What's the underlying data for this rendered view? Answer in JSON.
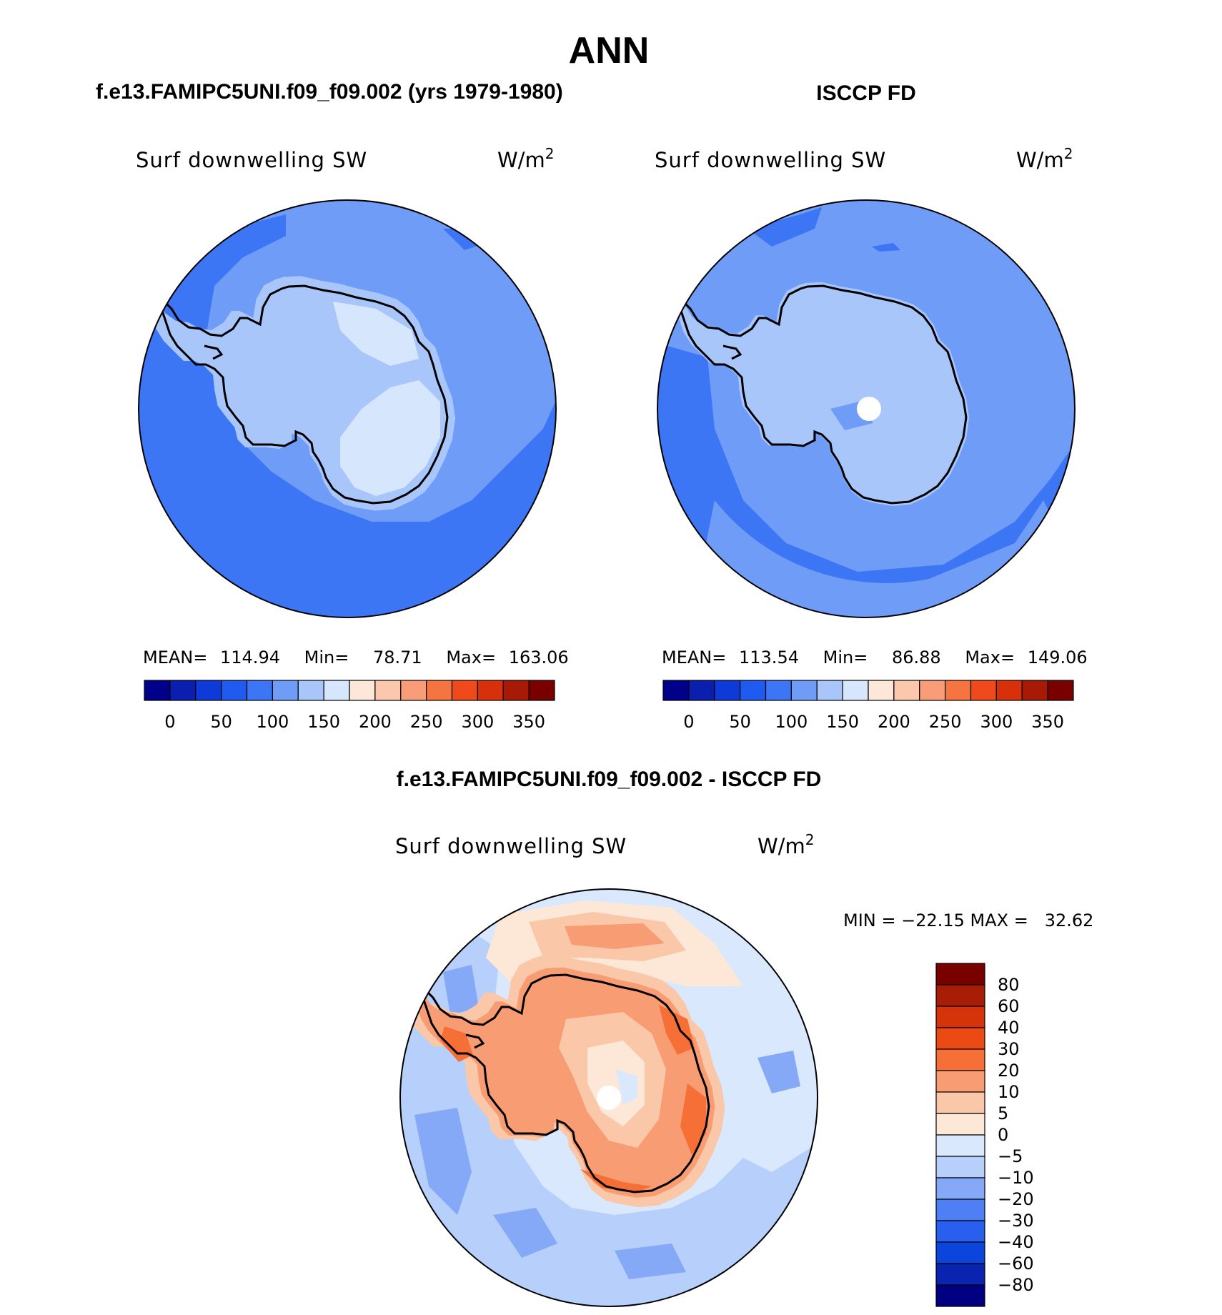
{
  "title": "ANN",
  "colors": {
    "abs": [
      "#00008b",
      "#0a1fb0",
      "#0d3ad8",
      "#1f5bf0",
      "#3c76f4",
      "#6e9cf7",
      "#a9c6fb",
      "#d6e7fd",
      "#fde7d8",
      "#fbc8ad",
      "#f99d79",
      "#f6743f",
      "#f04a1c",
      "#d8300a",
      "#a81a05",
      "#7a0000"
    ],
    "diff": [
      "#000080",
      "#0a24b0",
      "#0b45dc",
      "#285fef",
      "#4f7ff4",
      "#86a9f7",
      "#b7cffb",
      "#d9e8fd",
      "#fde8d8",
      "#fbc7a9",
      "#f89d73",
      "#f56f36",
      "#ec4a15",
      "#d5330a",
      "#a81d05",
      "#7a0000"
    ]
  },
  "panels": [
    {
      "case_title": "f.e13.FAMIPC5UNI.f09_f09.002 (yrs 1979-1980)",
      "var_title": "Surf downwelling SW",
      "units_base": "W/m",
      "units_exp": "2",
      "stats": {
        "mean_label": "MEAN=",
        "mean": "114.94",
        "min_label": "Min=",
        "min": "78.71",
        "max_label": "Max=",
        "max": "163.06"
      },
      "colorbar_ticks": [
        "0",
        "50",
        "100",
        "150",
        "200",
        "250",
        "300",
        "350"
      ]
    },
    {
      "case_title": "ISCCP FD",
      "var_title": "Surf downwelling SW",
      "units_base": "W/m",
      "units_exp": "2",
      "stats": {
        "mean_label": "MEAN=",
        "mean": "113.54",
        "min_label": "Min=",
        "min": "86.88",
        "max_label": "Max=",
        "max": "149.06"
      },
      "colorbar_ticks": [
        "0",
        "50",
        "100",
        "150",
        "200",
        "250",
        "300",
        "350"
      ]
    }
  ],
  "diff_panel": {
    "case_title": "f.e13.FAMIPC5UNI.f09_f09.002 - ISCCP FD",
    "var_title": "Surf downwelling SW",
    "units_base": "W/m",
    "units_exp": "2",
    "stats_text": "MIN = −22.15 MAX =   32.62",
    "colorbar_ticks": [
      "80",
      "60",
      "40",
      "30",
      "20",
      "10",
      "5",
      "0",
      "−5",
      "−10",
      "−20",
      "−30",
      "−40",
      "−60",
      "−80"
    ]
  }
}
